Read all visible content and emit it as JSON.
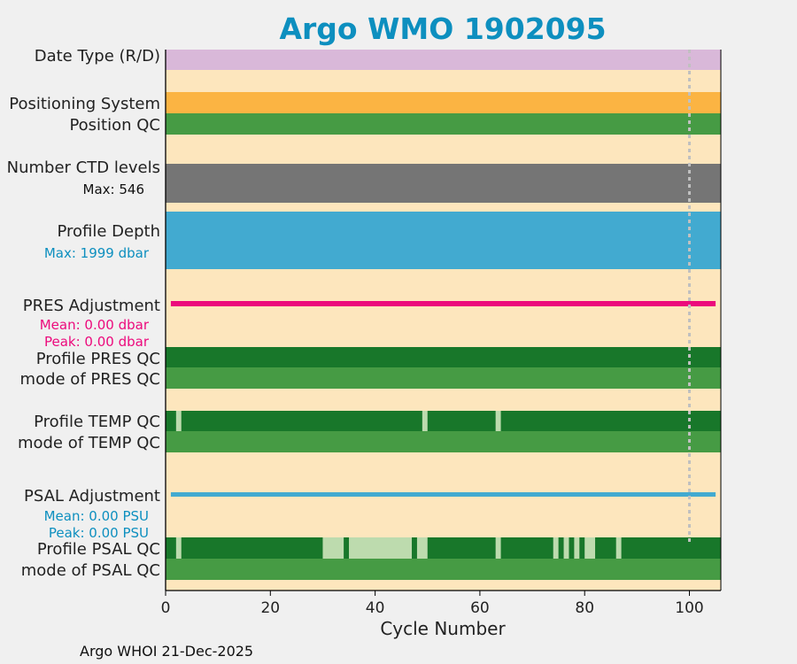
{
  "chart_data": {
    "type": "timeline",
    "title": "Argo WMO 1902095",
    "xlabel": "Cycle Number",
    "xlim": [
      0,
      106
    ],
    "xticks": [
      0,
      20,
      40,
      60,
      80,
      100
    ],
    "reference_line_x": 100,
    "colors": {
      "background": "#fde6bd",
      "date_type": "#d9b8d9",
      "positioning": "#fbb443",
      "good": "#469b44",
      "qc_dark": "#18772a",
      "qc_light": "#bddbae",
      "ctd": "#757575",
      "depth": "#42aad0",
      "pres": "#ec0a7c",
      "psal": "#42aad0",
      "stat_blue": "#0d8fbf",
      "stat_pink": "#ec0a7c",
      "ref_line": "#c0c0c0"
    },
    "rows": [
      {
        "key": "date_type",
        "label": "Date Type (R/D)",
        "color_key": "date_type",
        "segments": [
          [
            0,
            106
          ]
        ]
      },
      {
        "key": "positioning",
        "label": "Positioning System",
        "color_key": "positioning",
        "segments": [
          [
            0,
            106
          ]
        ]
      },
      {
        "key": "position_qc",
        "label": "Position QC",
        "color_key": "good",
        "segments": [
          [
            0,
            106
          ]
        ]
      },
      {
        "key": "ctd_levels",
        "label": "Number CTD levels",
        "color_key": "ctd",
        "segments": [
          [
            0,
            106
          ]
        ]
      },
      {
        "key": "profile_depth",
        "label": "Profile Depth",
        "color_key": "depth",
        "segments": [
          [
            0,
            106
          ]
        ]
      },
      {
        "key": "pres_adj",
        "label": "PRES Adjustment",
        "color_key": "pres",
        "segments": [
          [
            1,
            105
          ]
        ]
      },
      {
        "key": "pres_qc",
        "label": "Profile PRES QC",
        "color_key": "qc_dark",
        "segments": [
          [
            0,
            106
          ]
        ]
      },
      {
        "key": "pres_mode",
        "label": "mode of PRES QC",
        "color_key": "good",
        "segments": [
          [
            0,
            106
          ]
        ]
      },
      {
        "key": "temp_qc",
        "label": "Profile TEMP QC",
        "color_key": "qc_dark",
        "segments": [
          [
            0,
            106
          ]
        ],
        "highlights": [
          [
            2,
            3
          ],
          [
            49,
            50
          ],
          [
            63,
            64
          ]
        ]
      },
      {
        "key": "temp_mode",
        "label": "mode of TEMP QC",
        "color_key": "good",
        "segments": [
          [
            0,
            106
          ]
        ]
      },
      {
        "key": "psal_adj",
        "label": "PSAL Adjustment",
        "color_key": "psal",
        "segments": [
          [
            1,
            105
          ]
        ]
      },
      {
        "key": "psal_qc",
        "label": "Profile PSAL QC",
        "color_key": "qc_dark",
        "segments": [
          [
            0,
            106
          ]
        ],
        "highlights": [
          [
            2,
            3
          ],
          [
            30,
            34
          ],
          [
            35,
            47
          ],
          [
            48,
            50
          ],
          [
            63,
            64
          ],
          [
            74,
            75
          ],
          [
            76,
            77
          ],
          [
            78,
            79
          ],
          [
            80,
            82
          ],
          [
            86,
            87
          ]
        ]
      },
      {
        "key": "psal_mode",
        "label": "mode of PSAL QC",
        "color_key": "good",
        "segments": [
          [
            0,
            106
          ]
        ]
      }
    ],
    "stats": {
      "ctd_max": "Max: 546",
      "depth_max": "Max: 1999 dbar",
      "pres_mean": "Mean: 0.00 dbar",
      "pres_peak": "Peak: 0.00 dbar",
      "psal_mean": "Mean: 0.00 PSU",
      "psal_peak": "Peak: 0.00 PSU"
    }
  },
  "footer": "Argo WHOI 21-Dec-2025"
}
